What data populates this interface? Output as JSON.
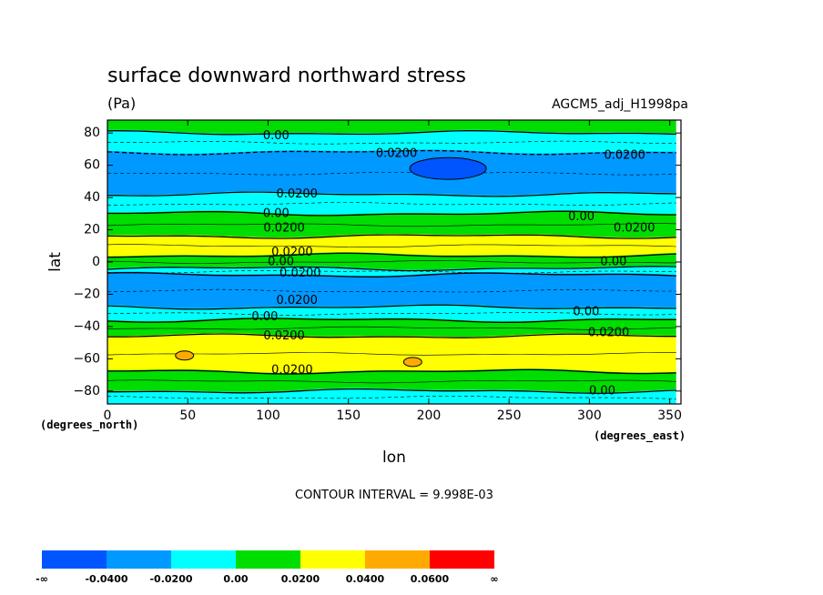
{
  "chart_data": {
    "type": "contour-filled map",
    "title": "surface downward northward stress",
    "units": "(Pa)",
    "dataset": "AGCM5_adj_H1998pa",
    "xlabel": "lon",
    "ylabel": "lat",
    "x_units": "(degrees_east)",
    "y_units": "(degrees_north)",
    "xlim": [
      0,
      357
    ],
    "ylim": [
      -88,
      88
    ],
    "x_ticks": [
      0,
      50,
      100,
      150,
      200,
      250,
      300,
      350
    ],
    "y_ticks": [
      80,
      60,
      40,
      20,
      0,
      -20,
      -40,
      -60,
      -80
    ],
    "contour_interval_text": "CONTOUR INTERVAL = 9.998E-03",
    "bands": [
      {
        "lat_top": 88,
        "lat_bot": 80,
        "level": "green",
        "color": "#00dd00"
      },
      {
        "lat_top": 80,
        "lat_bot": 68,
        "level": "cyan",
        "color": "#00ffff"
      },
      {
        "lat_top": 68,
        "lat_bot": 42,
        "level": "blue",
        "color": "#0099ff"
      },
      {
        "lat_top": 42,
        "lat_bot": 30,
        "level": "cyan",
        "color": "#00ffff"
      },
      {
        "lat_top": 30,
        "lat_bot": 16,
        "level": "green",
        "color": "#00dd00"
      },
      {
        "lat_top": 16,
        "lat_bot": 4,
        "level": "yellow",
        "color": "#ffff00"
      },
      {
        "lat_top": 4,
        "lat_bot": -4,
        "level": "green",
        "color": "#00dd00"
      },
      {
        "lat_top": -4,
        "lat_bot": -8,
        "level": "cyan",
        "color": "#00ffff"
      },
      {
        "lat_top": -8,
        "lat_bot": -28,
        "level": "blue",
        "color": "#0099ff"
      },
      {
        "lat_top": -28,
        "lat_bot": -36,
        "level": "cyan",
        "color": "#00ffff"
      },
      {
        "lat_top": -36,
        "lat_bot": -46,
        "level": "green",
        "color": "#00dd00"
      },
      {
        "lat_top": -46,
        "lat_bot": -68,
        "level": "yellow",
        "color": "#ffff00"
      },
      {
        "lat_top": -68,
        "lat_bot": -80,
        "level": "green",
        "color": "#00dd00"
      },
      {
        "lat_top": -80,
        "lat_bot": -88,
        "level": "cyan",
        "color": "#00ffff"
      }
    ],
    "features": [
      {
        "name": "min-blob-60N",
        "lon": 212,
        "lat": 58,
        "color": "#0055ff"
      },
      {
        "name": "max-blob-60S-a",
        "lon": 190,
        "lat": -62,
        "color": "#ffaa00"
      },
      {
        "name": "max-blob-60S-b",
        "lon": 48,
        "lat": -58,
        "color": "#ffaa00"
      }
    ],
    "contour_labels": [
      {
        "text": "0.00",
        "lon": 105,
        "lat": 78
      },
      {
        "text": "0.0200",
        "lon": 180,
        "lat": 67
      },
      {
        "text": "0.0200",
        "lon": 322,
        "lat": 66
      },
      {
        "text": "0.0200",
        "lon": 118,
        "lat": 42
      },
      {
        "text": "0.00",
        "lon": 105,
        "lat": 30
      },
      {
        "text": "0.00",
        "lon": 295,
        "lat": 28
      },
      {
        "text": "0.0200",
        "lon": 110,
        "lat": 21
      },
      {
        "text": "0.0200",
        "lon": 328,
        "lat": 21
      },
      {
        "text": "0.0200",
        "lon": 115,
        "lat": 6
      },
      {
        "text": "0.00",
        "lon": 108,
        "lat": 0
      },
      {
        "text": "0.00",
        "lon": 315,
        "lat": 0
      },
      {
        "text": "0.0200",
        "lon": 120,
        "lat": -7
      },
      {
        "text": "0.0200",
        "lon": 118,
        "lat": -24
      },
      {
        "text": "0.00",
        "lon": 98,
        "lat": -34
      },
      {
        "text": "0.00",
        "lon": 298,
        "lat": -31
      },
      {
        "text": "0.0200",
        "lon": 110,
        "lat": -46
      },
      {
        "text": "0.0200",
        "lon": 312,
        "lat": -44
      },
      {
        "text": "0.0200",
        "lon": 115,
        "lat": -67
      },
      {
        "text": "0.00",
        "lon": 308,
        "lat": -80
      }
    ],
    "colorbar": {
      "colors": [
        "#0055ff",
        "#0099ff",
        "#00ffff",
        "#00dd00",
        "#ffff00",
        "#ffaa00",
        "#ff0000"
      ],
      "labels": [
        "-∞",
        "-0.0400",
        "-0.0200",
        "0.00",
        "0.0200",
        "0.0400",
        "0.0600",
        "∞"
      ]
    }
  }
}
